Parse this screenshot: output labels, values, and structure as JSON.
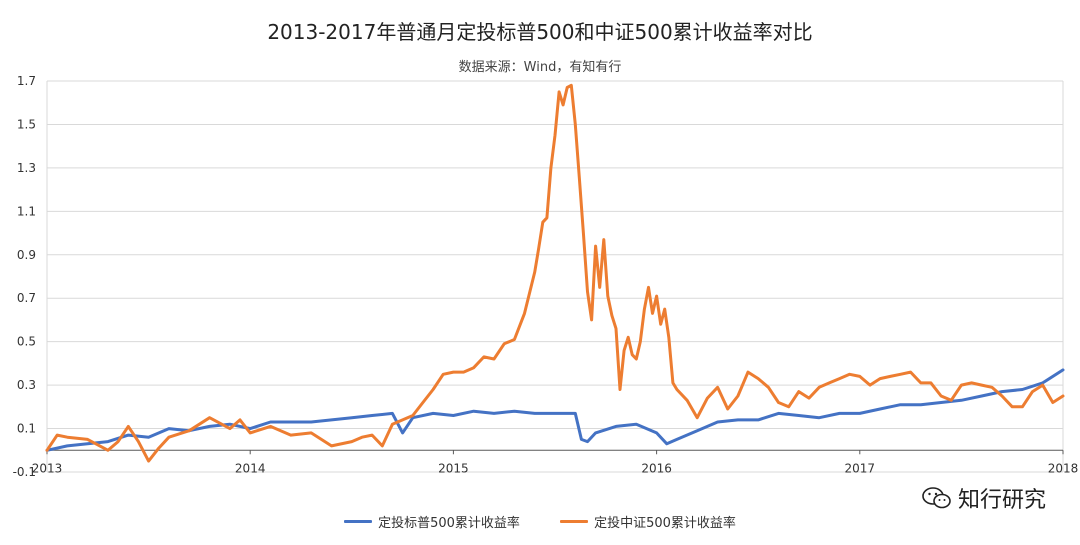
{
  "title": "2013-2017年普通月定投标普500和中证500累计收益率对比",
  "subtitle": "数据来源：Wind，有知有行",
  "watermark": "知行研究",
  "colors": {
    "sp500": "#4472C4",
    "csi500": "#ED7D31",
    "grid": "#d9d9d9",
    "axis": "#595959"
  },
  "chart_data": {
    "type": "line",
    "x_range": [
      2013,
      2018
    ],
    "x_ticks": [
      "2013",
      "2014",
      "2015",
      "2016",
      "2017",
      "2018"
    ],
    "ylim": [
      -0.1,
      1.7
    ],
    "y_ticks": [
      "-0.1",
      "0.1",
      "0.3",
      "0.5",
      "0.7",
      "0.9",
      "1.1",
      "1.3",
      "1.5",
      "1.7"
    ],
    "grid": "horizontal",
    "legend": "bottom",
    "series": [
      {
        "name": "定投标普500累计收益率",
        "color": "#4472C4",
        "x": [
          2013.0,
          2013.1,
          2013.2,
          2013.3,
          2013.4,
          2013.5,
          2013.6,
          2013.7,
          2013.8,
          2013.9,
          2014.0,
          2014.1,
          2014.2,
          2014.3,
          2014.4,
          2014.5,
          2014.6,
          2014.7,
          2014.75,
          2014.8,
          2014.9,
          2015.0,
          2015.1,
          2015.2,
          2015.3,
          2015.4,
          2015.5,
          2015.6,
          2015.63,
          2015.66,
          2015.7,
          2015.8,
          2015.9,
          2016.0,
          2016.05,
          2016.1,
          2016.2,
          2016.3,
          2016.4,
          2016.5,
          2016.6,
          2016.7,
          2016.8,
          2016.9,
          2017.0,
          2017.1,
          2017.2,
          2017.3,
          2017.4,
          2017.5,
          2017.6,
          2017.7,
          2017.8,
          2017.9,
          2018.0
        ],
        "values": [
          0.0,
          0.02,
          0.03,
          0.04,
          0.07,
          0.06,
          0.1,
          0.09,
          0.11,
          0.12,
          0.1,
          0.13,
          0.13,
          0.13,
          0.14,
          0.15,
          0.16,
          0.17,
          0.08,
          0.15,
          0.17,
          0.16,
          0.18,
          0.17,
          0.18,
          0.17,
          0.17,
          0.17,
          0.05,
          0.04,
          0.08,
          0.11,
          0.12,
          0.08,
          0.03,
          0.05,
          0.09,
          0.13,
          0.14,
          0.14,
          0.17,
          0.16,
          0.15,
          0.17,
          0.17,
          0.19,
          0.21,
          0.21,
          0.22,
          0.23,
          0.25,
          0.27,
          0.28,
          0.31,
          0.37
        ]
      },
      {
        "name": "定投中证500累计收益率",
        "color": "#ED7D31",
        "x": [
          2013.0,
          2013.05,
          2013.1,
          2013.2,
          2013.3,
          2013.35,
          2013.4,
          2013.45,
          2013.5,
          2013.55,
          2013.6,
          2013.7,
          2013.8,
          2013.9,
          2013.95,
          2014.0,
          2014.1,
          2014.2,
          2014.3,
          2014.4,
          2014.5,
          2014.55,
          2014.6,
          2014.65,
          2014.7,
          2014.75,
          2014.8,
          2014.85,
          2014.9,
          2014.95,
          2015.0,
          2015.05,
          2015.1,
          2015.15,
          2015.2,
          2015.25,
          2015.3,
          2015.35,
          2015.4,
          2015.42,
          2015.44,
          2015.46,
          2015.48,
          2015.5,
          2015.52,
          2015.54,
          2015.56,
          2015.58,
          2015.6,
          2015.62,
          2015.64,
          2015.66,
          2015.68,
          2015.7,
          2015.72,
          2015.74,
          2015.76,
          2015.78,
          2015.8,
          2015.82,
          2015.84,
          2015.86,
          2015.88,
          2015.9,
          2015.92,
          2015.94,
          2015.96,
          2015.98,
          2016.0,
          2016.02,
          2016.04,
          2016.06,
          2016.08,
          2016.1,
          2016.15,
          2016.2,
          2016.25,
          2016.3,
          2016.35,
          2016.4,
          2016.45,
          2016.5,
          2016.55,
          2016.6,
          2016.65,
          2016.7,
          2016.75,
          2016.8,
          2016.85,
          2016.9,
          2016.95,
          2017.0,
          2017.05,
          2017.1,
          2017.15,
          2017.2,
          2017.25,
          2017.3,
          2017.35,
          2017.4,
          2017.45,
          2017.5,
          2017.55,
          2017.6,
          2017.65,
          2017.7,
          2017.75,
          2017.8,
          2017.85,
          2017.9,
          2017.95,
          2018.0
        ],
        "values": [
          0.0,
          0.07,
          0.06,
          0.05,
          0.0,
          0.04,
          0.11,
          0.04,
          -0.05,
          0.01,
          0.06,
          0.09,
          0.15,
          0.1,
          0.14,
          0.08,
          0.11,
          0.07,
          0.08,
          0.02,
          0.04,
          0.06,
          0.07,
          0.02,
          0.12,
          0.14,
          0.16,
          0.22,
          0.28,
          0.35,
          0.36,
          0.36,
          0.38,
          0.43,
          0.42,
          0.49,
          0.51,
          0.63,
          0.82,
          0.93,
          1.05,
          1.07,
          1.3,
          1.45,
          1.65,
          1.59,
          1.67,
          1.68,
          1.5,
          1.25,
          1.0,
          0.73,
          0.6,
          0.94,
          0.75,
          0.97,
          0.71,
          0.62,
          0.56,
          0.28,
          0.46,
          0.52,
          0.44,
          0.42,
          0.5,
          0.65,
          0.75,
          0.63,
          0.71,
          0.58,
          0.65,
          0.52,
          0.31,
          0.28,
          0.23,
          0.15,
          0.24,
          0.29,
          0.19,
          0.25,
          0.36,
          0.33,
          0.29,
          0.22,
          0.2,
          0.27,
          0.24,
          0.29,
          0.31,
          0.33,
          0.35,
          0.34,
          0.3,
          0.33,
          0.34,
          0.35,
          0.36,
          0.31,
          0.31,
          0.25,
          0.23,
          0.3,
          0.31,
          0.3,
          0.29,
          0.25,
          0.2,
          0.2,
          0.27,
          0.3,
          0.22,
          0.25
        ]
      }
    ]
  }
}
